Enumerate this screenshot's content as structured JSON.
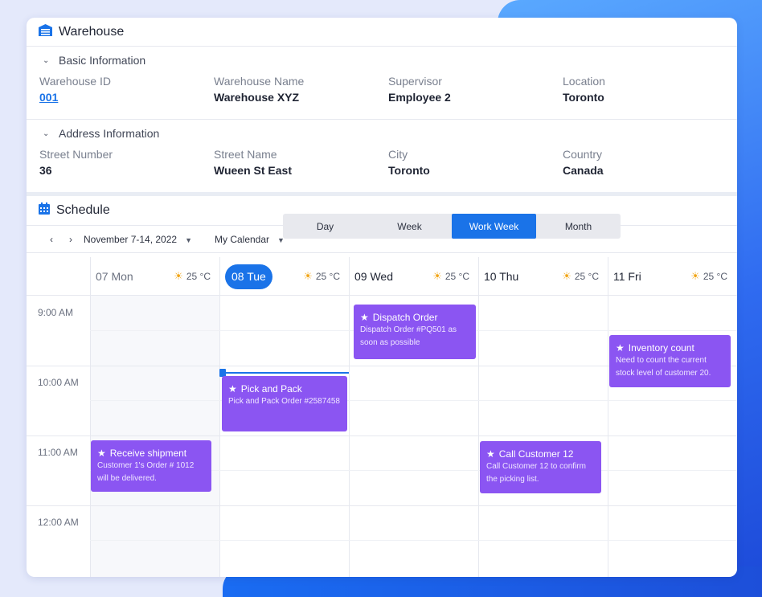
{
  "app": {
    "title": "Warehouse",
    "title_icon": "warehouse-icon",
    "accent": "#1a73e8"
  },
  "basic_info": {
    "heading": "Basic Information",
    "fields": [
      {
        "label": "Warehouse ID",
        "value": "001"
      },
      {
        "label": "Warehouse Name",
        "value": "Warehouse XYZ"
      },
      {
        "label": "Supervisor",
        "value": "Employee 2"
      },
      {
        "label": "Location",
        "value": "Toronto"
      }
    ]
  },
  "address_info": {
    "heading": "Address Information",
    "fields": [
      {
        "label": "Street Number",
        "value": "36"
      },
      {
        "label": "Street Name",
        "value": "Wueen St East"
      },
      {
        "label": "City",
        "value": "Toronto"
      },
      {
        "label": "Country",
        "value": "Canada"
      }
    ]
  },
  "schedule": {
    "title": "Schedule",
    "title_icon": "calendar-icon",
    "date_range": "November 7-14, 2022",
    "calendar_select": "My Calendar",
    "views": [
      "Day",
      "Week",
      "Work Week",
      "Month"
    ],
    "active_view": "Work Week",
    "days": [
      {
        "label": "07 Mon",
        "temp": "25 °C"
      },
      {
        "label": "08 Tue",
        "temp": "25 °C",
        "today": true
      },
      {
        "label": "09 Wed",
        "temp": "25 °C"
      },
      {
        "label": "10 Thu",
        "temp": "25 °C"
      },
      {
        "label": "11 Fri",
        "temp": "25 °C"
      }
    ],
    "times": [
      "9:00 AM",
      "10:00 AM",
      "11:00 AM",
      "12:00 AM"
    ],
    "event_color": "#8b55f2",
    "events": [
      {
        "title": "Dispatch Order",
        "desc": "Dispatch Order #PQ501 as soon as possible"
      },
      {
        "title": "Inventory count",
        "desc": "Need to count the current stock level of customer 20."
      },
      {
        "title": "Pick and Pack",
        "desc": "Pick and Pack Order #2587458"
      },
      {
        "title": "Receive shipment",
        "desc": "Customer 1's Order # 1012 will be delivered."
      },
      {
        "title": "Call Customer 12",
        "desc": "Call Customer 12 to confirm the picking list."
      }
    ]
  }
}
